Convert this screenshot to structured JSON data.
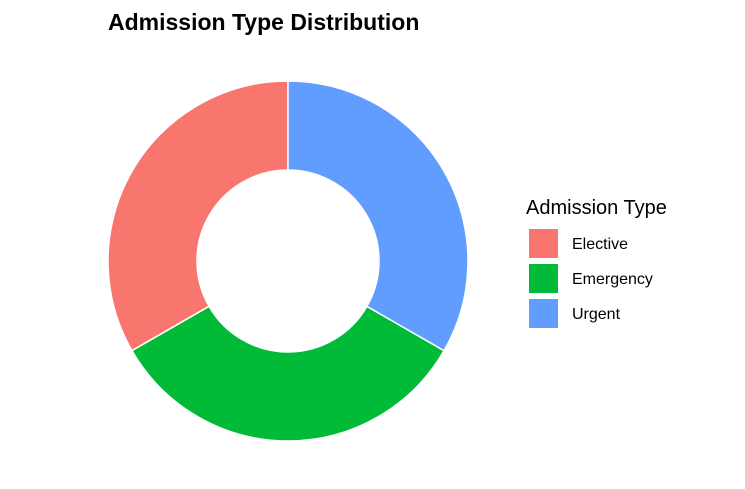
{
  "chart_data": {
    "type": "pie",
    "donut": true,
    "title": "Admission Type Distribution",
    "legend_title": "Admission Type",
    "legend_position": "right",
    "categories": [
      "Elective",
      "Emergency",
      "Urgent"
    ],
    "values": [
      33.3,
      33.4,
      33.3
    ],
    "colors": [
      "#F8766D",
      "#00BA38",
      "#619CFF"
    ]
  }
}
